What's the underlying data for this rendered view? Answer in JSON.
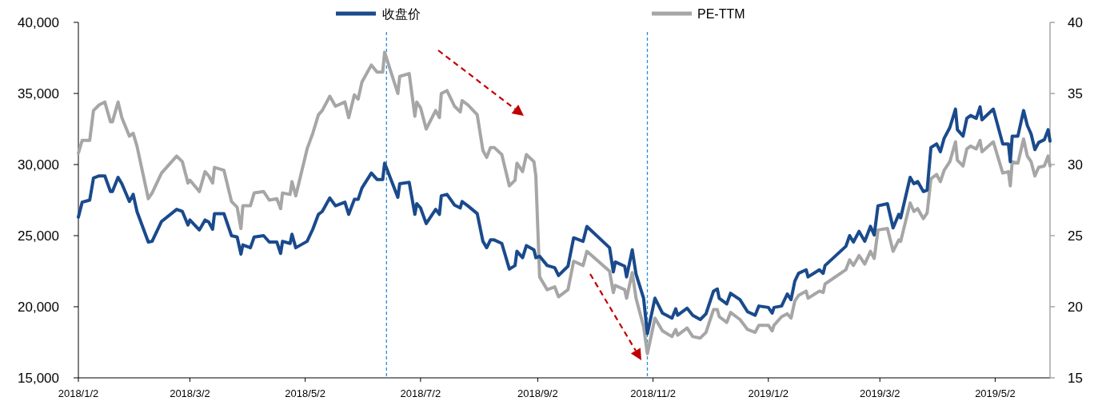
{
  "chart_data": {
    "type": "line",
    "legend": "top",
    "x": [
      "2018-01-02",
      "2018-01-04",
      "2018-01-08",
      "2018-01-10",
      "2018-01-13",
      "2018-01-16",
      "2018-01-19",
      "2018-01-20",
      "2018-01-23",
      "2018-01-25",
      "2018-01-29",
      "2018-01-31",
      "2018-02-02",
      "2018-02-08",
      "2018-02-10",
      "2018-02-15",
      "2018-02-23",
      "2018-02-26",
      "2018-03-01",
      "2018-03-02",
      "2018-03-07",
      "2018-03-10",
      "2018-03-12",
      "2018-03-14",
      "2018-03-15",
      "2018-03-20",
      "2018-03-24",
      "2018-03-27",
      "2018-03-29",
      "2018-03-30",
      "2018-04-03",
      "2018-04-05",
      "2018-04-10",
      "2018-04-13",
      "2018-04-17",
      "2018-04-19",
      "2018-04-20",
      "2018-04-24",
      "2018-04-25",
      "2018-04-27",
      "2018-05-03",
      "2018-05-06",
      "2018-05-09",
      "2018-05-11",
      "2018-05-15",
      "2018-05-18",
      "2018-05-23",
      "2018-05-25",
      "2018-05-28",
      "2018-05-30",
      "2018-06-01",
      "2018-06-06",
      "2018-06-09",
      "2018-06-12",
      "2018-06-13",
      "2018-06-20",
      "2018-06-21",
      "2018-06-26",
      "2018-06-29",
      "2018-06-30",
      "2018-07-02",
      "2018-07-05",
      "2018-07-10",
      "2018-07-12",
      "2018-07-13",
      "2018-07-16",
      "2018-07-20",
      "2018-07-23",
      "2018-07-24",
      "2018-07-27",
      "2018-08-01",
      "2018-08-04",
      "2018-08-06",
      "2018-08-08",
      "2018-08-10",
      "2018-08-14",
      "2018-08-18",
      "2018-08-21",
      "2018-08-22",
      "2018-08-25",
      "2018-08-27",
      "2018-08-31",
      "2018-09-01",
      "2018-09-03",
      "2018-09-07",
      "2018-09-11",
      "2018-09-13",
      "2018-09-18",
      "2018-09-21",
      "2018-09-26",
      "2018-09-28",
      "2018-10-10",
      "2018-10-12",
      "2018-10-13",
      "2018-10-18",
      "2018-10-19",
      "2018-10-22",
      "2018-10-24",
      "2018-10-28",
      "2018-10-30",
      "2018-11-03",
      "2018-11-07",
      "2018-11-12",
      "2018-11-14",
      "2018-11-15",
      "2018-11-20",
      "2018-11-23",
      "2018-11-27",
      "2018-11-30",
      "2018-12-04",
      "2018-12-06",
      "2018-12-07",
      "2018-12-11",
      "2018-12-13",
      "2018-12-18",
      "2018-12-22",
      "2018-12-26",
      "2018-12-28",
      "2019-01-02",
      "2019-01-04",
      "2019-01-05",
      "2019-01-09",
      "2019-01-12",
      "2019-01-14",
      "2019-01-16",
      "2019-01-18",
      "2019-01-22",
      "2019-01-23",
      "2019-01-29",
      "2019-01-31",
      "2019-02-01",
      "2019-02-12",
      "2019-02-14",
      "2019-02-16",
      "2019-02-19",
      "2019-02-22",
      "2019-02-25",
      "2019-02-27",
      "2019-03-01",
      "2019-03-06",
      "2019-03-09",
      "2019-03-12",
      "2019-03-13",
      "2019-03-18",
      "2019-03-20",
      "2019-03-22",
      "2019-03-25",
      "2019-03-27",
      "2019-03-29",
      "2019-04-01",
      "2019-04-03",
      "2019-04-05",
      "2019-04-08",
      "2019-04-11",
      "2019-04-12",
      "2019-04-15",
      "2019-04-17",
      "2019-04-19",
      "2019-04-22",
      "2019-04-24",
      "2019-04-25",
      "2019-05-01",
      "2019-05-06",
      "2019-05-09",
      "2019-05-10",
      "2019-05-11",
      "2019-05-14",
      "2019-05-17",
      "2019-05-19",
      "2019-05-21",
      "2019-05-23",
      "2019-05-25",
      "2019-05-28",
      "2019-05-30",
      "2019-05-31"
    ],
    "series": [
      {
        "name": "收盘价",
        "color": "#1a4a8c",
        "values": [
          26300,
          27350,
          27500,
          29050,
          29200,
          29200,
          28100,
          28100,
          29100,
          28650,
          27400,
          27900,
          26700,
          24550,
          24600,
          26000,
          26850,
          26700,
          25750,
          26100,
          25400,
          26100,
          25950,
          25450,
          26550,
          26550,
          25000,
          24900,
          23700,
          24350,
          24150,
          24900,
          25000,
          24550,
          24550,
          23750,
          24600,
          24450,
          25100,
          24150,
          24600,
          25450,
          26500,
          26700,
          27650,
          27100,
          27350,
          26500,
          27550,
          27550,
          28350,
          29400,
          28950,
          28950,
          30100,
          27700,
          28650,
          28750,
          26500,
          27250,
          26950,
          25850,
          26850,
          26500,
          27800,
          27900,
          27150,
          26950,
          27400,
          27100,
          26550,
          24600,
          24150,
          24700,
          24700,
          24450,
          22650,
          22900,
          23900,
          23450,
          24300,
          24000,
          23450,
          23550,
          22900,
          22750,
          22200,
          22850,
          24850,
          24600,
          25650,
          24150,
          22450,
          23150,
          22850,
          22100,
          24000,
          22300,
          20600,
          18100,
          20600,
          19550,
          19200,
          19850,
          19400,
          19900,
          19400,
          19100,
          19500,
          21100,
          21250,
          20600,
          20200,
          20950,
          20500,
          19650,
          19400,
          20050,
          19950,
          19550,
          19950,
          20050,
          20900,
          20500,
          21800,
          22350,
          22600,
          22100,
          22600,
          22350,
          22900,
          24250,
          25000,
          24550,
          25300,
          24600,
          25650,
          25050,
          27100,
          27250,
          25550,
          26500,
          26250,
          29100,
          28650,
          28800,
          28100,
          28200,
          31200,
          31450,
          30900,
          31850,
          32600,
          33900,
          32450,
          32000,
          33250,
          33450,
          33250,
          34050,
          33150,
          33900,
          31450,
          31450,
          30200,
          32000,
          32000,
          33800,
          32750,
          32150,
          31050,
          31550,
          31750,
          32450,
          31650
        ]
      },
      {
        "name": "PE-TTM",
        "color": "#a6a6a6",
        "axis": "y2",
        "values": [
          30.8,
          31.7,
          31.7,
          33.8,
          34.2,
          34.4,
          33.0,
          33.0,
          34.4,
          33.3,
          32.0,
          32.2,
          31.3,
          27.6,
          28.0,
          29.4,
          30.6,
          30.2,
          28.7,
          28.9,
          28.1,
          29.5,
          29.2,
          28.7,
          29.8,
          29.6,
          27.4,
          27.0,
          25.5,
          27.1,
          27.1,
          28.0,
          28.1,
          27.5,
          27.6,
          26.9,
          28.0,
          27.9,
          28.8,
          27.8,
          31.1,
          32.2,
          33.5,
          33.8,
          34.8,
          34.1,
          34.4,
          33.3,
          34.9,
          34.6,
          35.8,
          37.0,
          36.5,
          36.5,
          37.9,
          35.0,
          36.2,
          36.4,
          33.4,
          34.4,
          34.0,
          32.5,
          33.8,
          33.3,
          35.0,
          35.2,
          34.1,
          33.7,
          34.5,
          34.2,
          33.5,
          31.0,
          30.5,
          31.2,
          31.2,
          30.7,
          28.5,
          28.9,
          30.1,
          29.5,
          30.7,
          30.2,
          29.2,
          22.1,
          21.2,
          21.4,
          20.7,
          21.2,
          23.2,
          22.9,
          23.9,
          22.5,
          21.0,
          21.5,
          21.2,
          20.6,
          22.4,
          20.6,
          18.6,
          16.7,
          19.2,
          18.3,
          17.9,
          18.4,
          18.0,
          18.5,
          17.9,
          17.8,
          18.2,
          19.8,
          19.8,
          19.3,
          18.9,
          19.6,
          19.1,
          18.4,
          18.2,
          18.7,
          18.7,
          18.3,
          18.7,
          19.3,
          19.5,
          19.2,
          20.4,
          20.8,
          21.1,
          20.6,
          21.1,
          21.0,
          21.6,
          22.6,
          23.3,
          22.9,
          23.6,
          23.0,
          23.9,
          23.4,
          25.4,
          25.5,
          23.9,
          24.7,
          24.6,
          27.3,
          26.7,
          26.9,
          26.2,
          26.6,
          29.0,
          29.3,
          28.8,
          29.6,
          30.2,
          31.6,
          30.3,
          29.9,
          31.1,
          31.3,
          31.1,
          31.7,
          30.9,
          31.6,
          29.4,
          29.5,
          28.5,
          30.2,
          30.1,
          31.8,
          30.6,
          30.2,
          29.2,
          29.8,
          29.9,
          30.6,
          29.9
        ]
      }
    ],
    "xlim": [
      "2018-01-02",
      "2019-05-31"
    ],
    "xticks": [
      {
        "value": "2018-01-02",
        "label": "2018/1/2"
      },
      {
        "value": "2018-03-02",
        "label": "2018/3/2"
      },
      {
        "value": "2018-05-02",
        "label": "2018/5/2"
      },
      {
        "value": "2018-07-02",
        "label": "2018/7/2"
      },
      {
        "value": "2018-09-02",
        "label": "2018/9/2"
      },
      {
        "value": "2018-11-02",
        "label": "2018/11/2"
      },
      {
        "value": "2019-01-02",
        "label": "2019/1/2"
      },
      {
        "value": "2019-03-02",
        "label": "2019/3/2"
      },
      {
        "value": "2019-05-02",
        "label": "2019/5/2"
      }
    ],
    "ylim": [
      15000,
      40000
    ],
    "yticks": [
      {
        "value": 15000,
        "label": "15,000"
      },
      {
        "value": 20000,
        "label": "20,000"
      },
      {
        "value": 25000,
        "label": "25,000"
      },
      {
        "value": 30000,
        "label": "30,000"
      },
      {
        "value": 35000,
        "label": "35,000"
      },
      {
        "value": 40000,
        "label": "40,000"
      }
    ],
    "y2lim": [
      15,
      40
    ],
    "y2ticks": [
      15,
      20,
      25,
      30,
      35,
      40
    ],
    "ref_lines": [
      {
        "axis": "x",
        "value": "2018-06-14",
        "color": "#2e8bd8",
        "line_style": "dashed"
      },
      {
        "axis": "x",
        "value": "2018-10-30",
        "color": "#2e8bd8",
        "line_style": "dashed"
      }
    ]
  }
}
